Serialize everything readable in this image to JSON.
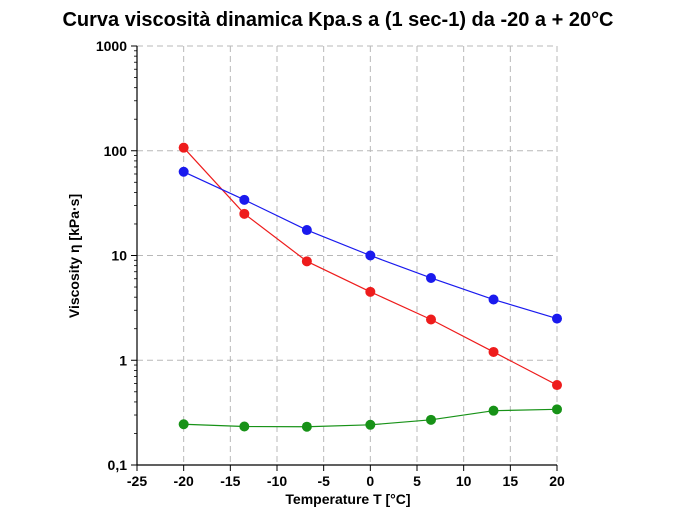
{
  "chart_data": {
    "type": "line",
    "title": "Curva viscosità dinamica Kpa.s a (1 sec-1) da -20 a + 20°C",
    "xlabel": "Temperature  T [°C]",
    "ylabel": "Viscosity  η  [kPa·s]",
    "xlim": [
      -25,
      20
    ],
    "ylim": [
      0.1,
      1000
    ],
    "yscale": "log",
    "grid": true,
    "legend": "none",
    "x_ticks": [
      -25,
      -20,
      -15,
      -10,
      -5,
      0,
      5,
      10,
      15,
      20
    ],
    "x_tick_labels": [
      "-25",
      "-20",
      "-15",
      "-10",
      "-5",
      "0",
      "5",
      "10",
      "15",
      "20"
    ],
    "y_ticks": [
      0.1,
      1,
      10,
      100,
      1000
    ],
    "y_tick_labels": [
      "0,1",
      "1",
      "10",
      "100",
      "1000"
    ],
    "series": [
      {
        "color": "#ee1c1c",
        "x": [
          -20,
          -13.5,
          -6.8,
          0,
          6.5,
          13.2,
          20
        ],
        "y": [
          107,
          25,
          8.8,
          4.5,
          2.45,
          1.2,
          0.58
        ]
      },
      {
        "color": "#1a1aee",
        "x": [
          -20,
          -13.5,
          -6.8,
          0,
          6.5,
          13.2,
          20
        ],
        "y": [
          63,
          34,
          17.5,
          10,
          6.1,
          3.8,
          2.5
        ]
      },
      {
        "color": "#179217",
        "x": [
          -20,
          -13.5,
          -6.8,
          0,
          6.5,
          13.2,
          20
        ],
        "y": [
          0.245,
          0.233,
          0.232,
          0.242,
          0.27,
          0.33,
          0.34
        ]
      }
    ]
  }
}
